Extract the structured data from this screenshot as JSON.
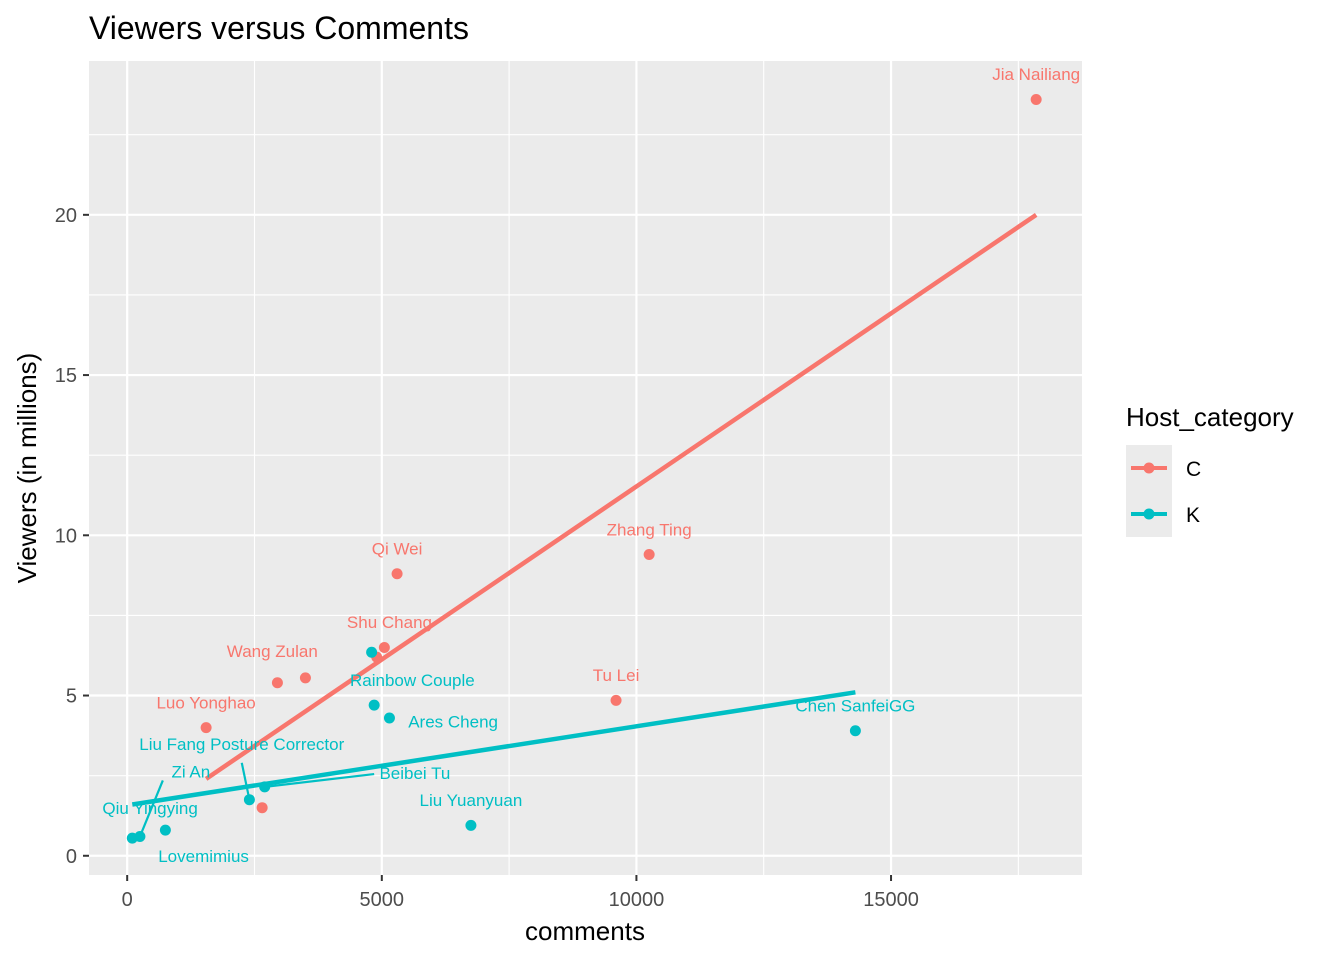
{
  "chart_data": {
    "type": "scatter",
    "title": "Viewers versus Comments",
    "xlabel": "comments",
    "ylabel": "Viewers (in millions)",
    "xlim": [
      -750,
      18750
    ],
    "ylim": [
      -0.6,
      24.8
    ],
    "xticks": [
      0,
      5000,
      10000,
      15000
    ],
    "yticks": [
      0,
      5,
      10,
      15,
      20
    ],
    "grid": true,
    "legend": {
      "title": "Host_category",
      "placement": "right",
      "entries": [
        {
          "label": "C",
          "color": "#F8766D"
        },
        {
          "label": "K",
          "color": "#00BFC4"
        }
      ]
    },
    "series": [
      {
        "name": "C",
        "color": "#F8766D",
        "points": [
          {
            "x": 17850,
            "y": 23.6,
            "label": "Jia Nailiang"
          },
          {
            "x": 10250,
            "y": 9.4,
            "label": "Zhang Ting"
          },
          {
            "x": 5300,
            "y": 8.8,
            "label": "Qi Wei"
          },
          {
            "x": 5050,
            "y": 6.5,
            "label": "Shu Chang"
          },
          {
            "x": 4900,
            "y": 6.2,
            "label": ""
          },
          {
            "x": 3500,
            "y": 5.55,
            "label": "Wang Zulan"
          },
          {
            "x": 2950,
            "y": 5.4,
            "label": ""
          },
          {
            "x": 9600,
            "y": 4.85,
            "label": "Tu Lei"
          },
          {
            "x": 1550,
            "y": 4.0,
            "label": "Luo Yonghao"
          },
          {
            "x": 2650,
            "y": 1.5,
            "label": ""
          }
        ],
        "fit": {
          "x": [
            1550,
            17850
          ],
          "y": [
            2.4,
            20.0
          ]
        }
      },
      {
        "name": "K",
        "color": "#00BFC4",
        "points": [
          {
            "x": 14300,
            "y": 3.9,
            "label": "Chen SanfeiGG"
          },
          {
            "x": 4800,
            "y": 6.35,
            "label": ""
          },
          {
            "x": 4850,
            "y": 4.7,
            "label": "Rainbow Couple"
          },
          {
            "x": 5150,
            "y": 4.3,
            "label": "Ares Cheng"
          },
          {
            "x": 2700,
            "y": 2.15,
            "label": "Beibei Tu"
          },
          {
            "x": 2400,
            "y": 1.75,
            "label": "Liu Fang Posture Corrector"
          },
          {
            "x": 6750,
            "y": 0.95,
            "label": "Liu Yuanyuan"
          },
          {
            "x": 750,
            "y": 0.8,
            "label": "Lovemimius"
          },
          {
            "x": 250,
            "y": 0.6,
            "label": "Zi An"
          },
          {
            "x": 100,
            "y": 0.55,
            "label": "Qiu Yingying"
          }
        ],
        "fit": {
          "x": [
            100,
            14300
          ],
          "y": [
            1.6,
            5.1
          ]
        }
      }
    ],
    "point_labels_layout": [
      {
        "text": "Jia Nailiang",
        "series": "C",
        "lx": 17850,
        "ly": 24.2,
        "anchor": "middle"
      },
      {
        "text": "Zhang Ting",
        "series": "C",
        "lx": 10250,
        "ly": 10.0,
        "anchor": "middle"
      },
      {
        "text": "Qi Wei",
        "series": "C",
        "lx": 5300,
        "ly": 9.4,
        "anchor": "middle"
      },
      {
        "text": "Shu Chang",
        "series": "C",
        "lx": 5150,
        "ly": 7.1,
        "anchor": "middle"
      },
      {
        "text": "Wang Zulan",
        "series": "C",
        "lx": 2850,
        "ly": 6.2,
        "anchor": "middle"
      },
      {
        "text": "Tu Lei",
        "series": "C",
        "lx": 9600,
        "ly": 5.45,
        "anchor": "middle"
      },
      {
        "text": "Luo Yonghao",
        "series": "C",
        "lx": 1550,
        "ly": 4.6,
        "anchor": "middle"
      },
      {
        "text": "Chen SanfeiGG",
        "series": "K",
        "lx": 14300,
        "ly": 4.5,
        "anchor": "middle"
      },
      {
        "text": "Rainbow Couple",
        "series": "K",
        "lx": 5600,
        "ly": 5.3,
        "anchor": "middle"
      },
      {
        "text": "Ares Cheng",
        "series": "K",
        "lx": 6400,
        "ly": 4.0,
        "anchor": "middle"
      },
      {
        "text": "Beibei Tu",
        "series": "K",
        "lx": 5650,
        "ly": 2.4,
        "anchor": "middle",
        "leader": [
          4850,
          2.55
        ]
      },
      {
        "text": "Liu Fang Posture Corrector",
        "series": "K",
        "lx": 2250,
        "ly": 3.3,
        "anchor": "middle",
        "leader": [
          2250,
          2.9
        ]
      },
      {
        "text": "Liu Yuanyuan",
        "series": "K",
        "lx": 6750,
        "ly": 1.55,
        "anchor": "middle"
      },
      {
        "text": "Lovemimius",
        "series": "K",
        "lx": 1500,
        "ly": -0.2,
        "anchor": "middle"
      },
      {
        "text": "Zi An",
        "series": "K",
        "lx": 1250,
        "ly": 2.45,
        "anchor": "middle",
        "leader": [
          700,
          2.35
        ]
      },
      {
        "text": "Qiu Yingying",
        "series": "K",
        "lx": 450,
        "ly": 1.3,
        "anchor": "middle"
      }
    ]
  }
}
